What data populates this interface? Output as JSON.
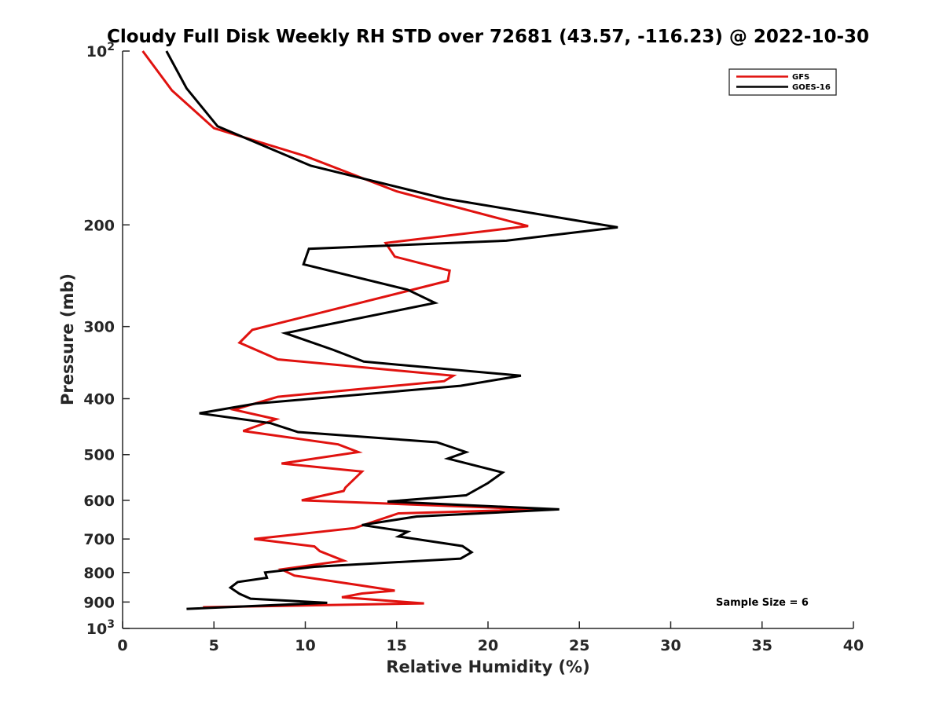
{
  "chart_data": {
    "type": "line",
    "orientation": "profile",
    "title": "Cloudy Full Disk Weekly RH STD over 72681 (43.57, -116.23) @ 2022-10-30",
    "xlabel": "Relative Humidity (%)",
    "ylabel": "Pressure (mb)",
    "xlim": [
      0,
      40
    ],
    "ylim": [
      100,
      1000
    ],
    "y_scale": "log",
    "y_reversed": true,
    "grid": false,
    "legend_position": "top-right",
    "x_ticks": [
      "0",
      "5",
      "10",
      "15",
      "20",
      "25",
      "30",
      "35",
      "40"
    ],
    "y_ticks": [
      {
        "value": 100,
        "base": "10",
        "exp": "2"
      },
      {
        "value": 200,
        "label": "200"
      },
      {
        "value": 300,
        "label": "300"
      },
      {
        "value": 400,
        "label": "400"
      },
      {
        "value": 500,
        "label": "500"
      },
      {
        "value": 600,
        "label": "600"
      },
      {
        "value": 700,
        "label": "700"
      },
      {
        "value": 800,
        "label": "800"
      },
      {
        "value": 900,
        "label": "900"
      },
      {
        "value": 1000,
        "base": "10",
        "exp": "3"
      }
    ],
    "annotation": "Sample Size = 6",
    "series": [
      {
        "name": "GFS",
        "color": "#e0120f",
        "x": [
          1.1,
          2.7,
          5.0,
          10.0,
          15.0,
          22.2,
          14.4,
          14.9,
          17.9,
          17.8,
          7.1,
          6.4,
          8.5,
          18.1,
          17.6,
          8.5,
          6.1,
          8.4,
          6.6,
          11.8,
          12.9,
          8.7,
          13.1,
          12.2,
          12.1,
          9.8,
          22.8,
          15.1,
          12.7,
          7.2,
          10.5,
          10.8,
          12.1,
          8.7,
          9.4,
          13.0,
          14.9,
          13.1,
          12.0,
          16.5,
          4.4
        ],
        "y": [
          100,
          117,
          136,
          152,
          175,
          201,
          215,
          227,
          240,
          250,
          304,
          320,
          342,
          365,
          373,
          397,
          418,
          434,
          455,
          480,
          495,
          518,
          535,
          570,
          578,
          600,
          622,
          632,
          670,
          700,
          721,
          735,
          763,
          790,
          810,
          842,
          860,
          870,
          883,
          905,
          919
        ]
      },
      {
        "name": "GOES-16",
        "color": "#000000",
        "x": [
          2.4,
          3.5,
          5.2,
          10.3,
          17.6,
          27.1,
          21.0,
          10.2,
          9.9,
          15.6,
          17.1,
          8.9,
          11.5,
          13.2,
          21.8,
          18.5,
          7.3,
          4.2,
          8.1,
          9.6,
          17.2,
          18.8,
          17.8,
          20.8,
          20.0,
          18.8,
          14.5,
          23.9,
          16.1,
          13.1,
          15.6,
          15.1,
          18.6,
          19.1,
          18.5,
          10.5,
          7.8,
          7.9,
          6.3,
          5.9,
          6.4,
          7.0,
          11.2,
          3.5
        ],
        "y": [
          100,
          116,
          135,
          158,
          180,
          202,
          213,
          220,
          234,
          259,
          273,
          308,
          329,
          345,
          365,
          380,
          408,
          424,
          441,
          457,
          476,
          495,
          508,
          537,
          560,
          588,
          603,
          622,
          640,
          662,
          680,
          693,
          720,
          738,
          757,
          782,
          800,
          817,
          831,
          850,
          871,
          888,
          903,
          925
        ]
      }
    ]
  }
}
